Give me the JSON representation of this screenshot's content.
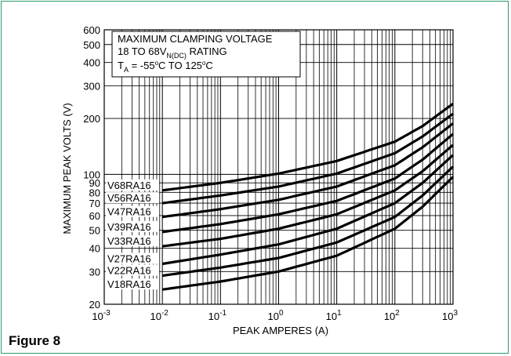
{
  "figure_label": "Figure 8",
  "accent_color": "#2e9a6b",
  "chart_data": {
    "type": "line",
    "title_lines": [
      "MAXIMUM CLAMPING VOLTAGE",
      "18 TO 68V",
      "N(DC)",
      " RATING",
      "T",
      "A",
      " = -55",
      "o",
      "C TO 125",
      "o",
      "C"
    ],
    "xlabel": "PEAK AMPERES (A)",
    "ylabel": "MAXIMUM PEAK VOLTS (V)",
    "x_scale": "log",
    "y_scale": "log",
    "xlim": [
      0.001,
      1000
    ],
    "ylim": [
      20,
      600
    ],
    "x_ticks": [
      {
        "base": "10",
        "exp": "-3"
      },
      {
        "base": "10",
        "exp": "-2"
      },
      {
        "base": "10",
        "exp": "-1"
      },
      {
        "base": "10",
        "exp": "0"
      },
      {
        "base": "10",
        "exp": "1"
      },
      {
        "base": "10",
        "exp": "2"
      },
      {
        "base": "10",
        "exp": "3"
      }
    ],
    "y_ticks": [
      "20",
      "30",
      "40",
      "50",
      "60",
      "70",
      "80",
      "90",
      "100",
      "200",
      "300",
      "400",
      "500",
      "600"
    ],
    "series": [
      {
        "name": "V68RA16",
        "x": [
          0.01,
          0.1,
          1,
          10,
          100,
          300,
          1000
        ],
        "y": [
          82,
          90,
          101,
          118,
          150,
          182,
          240
        ]
      },
      {
        "name": "V56RA16",
        "x": [
          0.01,
          0.1,
          1,
          10,
          100,
          300,
          1000
        ],
        "y": [
          70,
          77,
          86,
          101,
          130,
          160,
          212
        ]
      },
      {
        "name": "V47RA16",
        "x": [
          0.01,
          0.1,
          1,
          10,
          100,
          300,
          1000
        ],
        "y": [
          59,
          65,
          73,
          86,
          112,
          140,
          188
        ]
      },
      {
        "name": "V39RA16",
        "x": [
          0.01,
          0.1,
          1,
          10,
          100,
          300,
          1000
        ],
        "y": [
          49,
          54,
          61,
          72,
          95,
          120,
          165
        ]
      },
      {
        "name": "V33RA16",
        "x": [
          0.01,
          0.1,
          1,
          10,
          100,
          300,
          1000
        ],
        "y": [
          41,
          45,
          51,
          61,
          82,
          104,
          144
        ]
      },
      {
        "name": "V27RA16",
        "x": [
          0.01,
          0.1,
          1,
          10,
          100,
          300,
          1000
        ],
        "y": [
          33,
          37,
          42,
          51,
          70,
          90,
          127
        ]
      },
      {
        "name": "V22RA16",
        "x": [
          0.01,
          0.1,
          1,
          10,
          100,
          300,
          1000
        ],
        "y": [
          28.5,
          31.5,
          35.5,
          43,
          59,
          77,
          110
        ]
      },
      {
        "name": "V18RA16",
        "x": [
          0.01,
          0.1,
          1,
          10,
          100,
          300,
          1000
        ],
        "y": [
          24,
          26.5,
          30,
          36.5,
          51,
          67,
          97
        ]
      }
    ]
  }
}
